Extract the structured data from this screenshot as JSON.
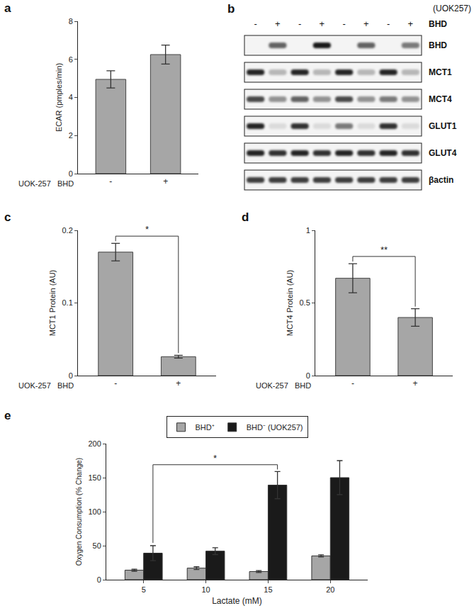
{
  "chart_data": [
    {
      "panel": "a",
      "type": "bar",
      "ylabel": "ECAR (pmples/min)",
      "xlabel": "BHD",
      "row_label": "UOK-257",
      "categories": [
        "-",
        "+"
      ],
      "values": [
        4.95,
        6.25
      ],
      "errors": [
        0.45,
        0.5
      ],
      "color": "#a6a6a6",
      "ylim": [
        0,
        8
      ],
      "yticks": [
        0,
        2,
        4,
        6,
        8
      ],
      "grid": false
    },
    {
      "panel": "c",
      "type": "bar",
      "ylabel": "MCT1 Protein (AU)",
      "xlabel": "BHD",
      "row_label": "UOK-257",
      "categories": [
        "-",
        "+"
      ],
      "values": [
        0.17,
        0.026
      ],
      "errors": [
        0.012,
        0.002
      ],
      "color": "#a6a6a6",
      "ylim": [
        0,
        0.2
      ],
      "yticks": [
        0,
        0.1,
        0.2
      ],
      "grid": false,
      "significance": [
        {
          "from": 0,
          "to": 1,
          "label": "*"
        }
      ]
    },
    {
      "panel": "d",
      "type": "bar",
      "ylabel": "MCT4 Protein (AU)",
      "xlabel": "BHD",
      "row_label": "UOK-257",
      "categories": [
        "-",
        "+"
      ],
      "values": [
        0.67,
        0.4
      ],
      "errors": [
        0.1,
        0.06
      ],
      "color": "#a6a6a6",
      "ylim": [
        0,
        1
      ],
      "yticks": [
        0,
        0.5,
        1
      ],
      "grid": false,
      "significance": [
        {
          "from": 0,
          "to": 1,
          "label": "**"
        }
      ]
    },
    {
      "panel": "e",
      "type": "bar",
      "ylabel": "Oxygen Consumption (% Change)",
      "xlabel": "Lactate (mM)",
      "categories": [
        "5",
        "10",
        "15",
        "20"
      ],
      "series": [
        {
          "name": "BHD⁺",
          "color": "#a6a6a6",
          "values": [
            14,
            17,
            12,
            35
          ],
          "errors": [
            1.5,
            2,
            1.5,
            1.5
          ]
        },
        {
          "name": "BHD⁻ (UOK257)",
          "color": "#1a1a1a",
          "values": [
            39,
            42,
            139,
            150
          ],
          "errors": [
            11,
            5,
            20,
            25
          ]
        }
      ],
      "ylim": [
        0,
        200
      ],
      "yticks": [
        0,
        50,
        100,
        150,
        200
      ],
      "grid": false,
      "legend": "top",
      "significance": [
        {
          "series": 1,
          "from": 0,
          "to": 2,
          "label": "*"
        }
      ]
    }
  ],
  "blot": {
    "panel": "b",
    "cell_line": "(UOK257)",
    "treatment": "BHD",
    "lanes": [
      "-",
      "+",
      "-",
      "+",
      "-",
      "+",
      "-",
      "+"
    ],
    "bands": [
      {
        "label": "BHD",
        "intensity": [
          0,
          0.6,
          0,
          0.9,
          0,
          0.6,
          0,
          0.5
        ]
      },
      {
        "label": "MCT1",
        "intensity": [
          0.85,
          0.25,
          0.85,
          0.25,
          0.85,
          0.25,
          0.85,
          0.25
        ]
      },
      {
        "label": "MCT4",
        "intensity": [
          0.7,
          0.4,
          0.6,
          0.4,
          0.7,
          0.4,
          0.5,
          0.4
        ]
      },
      {
        "label": "GLUT1",
        "intensity": [
          0.85,
          0.1,
          0.8,
          0.1,
          0.5,
          0.1,
          0.8,
          0.1
        ]
      },
      {
        "label": "GLUT4",
        "intensity": [
          0.85,
          0.8,
          0.85,
          0.8,
          0.85,
          0.8,
          0.85,
          0.8
        ]
      },
      {
        "label": "βactin",
        "intensity": [
          0.75,
          0.75,
          0.75,
          0.75,
          0.75,
          0.75,
          0.75,
          0.75
        ]
      }
    ]
  }
}
